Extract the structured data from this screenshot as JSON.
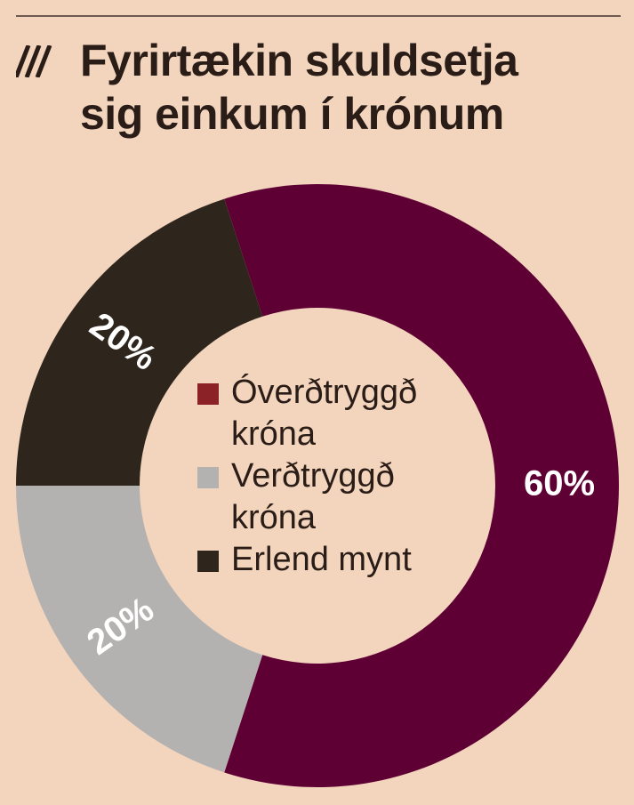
{
  "chart_data": {
    "type": "pie",
    "donut": true,
    "title_lines": [
      "Fyrirtækin skuldsetja",
      "sig einkum í krónum"
    ],
    "slices": [
      {
        "name": "Óverðtryggð króna",
        "value": 60,
        "label": "60%",
        "color": "#5e0034"
      },
      {
        "name": "Verðtryggð króna",
        "value": 20,
        "label": "20%",
        "color": "#b3b2b1"
      },
      {
        "name": "Erlend mynt",
        "value": 20,
        "label": "20%",
        "color": "#2e261d"
      }
    ],
    "legend": [
      {
        "label_lines": [
          "Óverðtryggð",
          "króna"
        ],
        "color": "#8b2227"
      },
      {
        "label_lines": [
          "Verðtryggð",
          "króna"
        ],
        "color": "#b3b2b1"
      },
      {
        "label_lines": [
          "Erlend mynt"
        ],
        "color": "#2e261d"
      }
    ],
    "legend_placement": "center",
    "background": "#f3d4bd"
  }
}
